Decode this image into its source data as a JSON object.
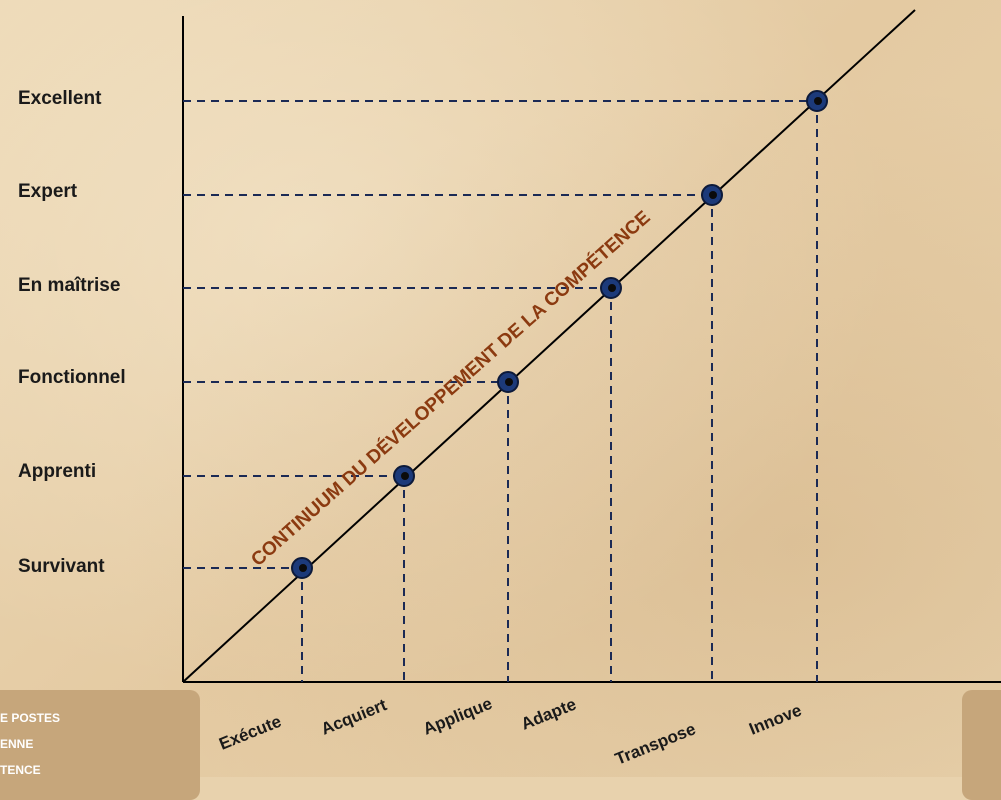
{
  "levels": [
    "Survivant",
    "Apprenti",
    "Fonctionnel",
    "En maîtrise",
    "Expert",
    "Excellent"
  ],
  "steps": [
    "Exécute",
    "Acquiert",
    "Applique",
    "Adapte",
    "Transpose",
    "Innove"
  ],
  "diagonal_title": "CONTINUUM DU DÉVELOPPEMENT DE LA COMPÉTENCE",
  "left_panel_lines": [
    "E POSTES",
    "ENNE",
    "TENCE"
  ],
  "colors": {
    "line": "#000000",
    "dash": "#1b2a55",
    "point": "#1c3a7a",
    "point_core": "#0b0b0b",
    "title": "#8b3a10",
    "panel": "#c6a67b"
  }
}
